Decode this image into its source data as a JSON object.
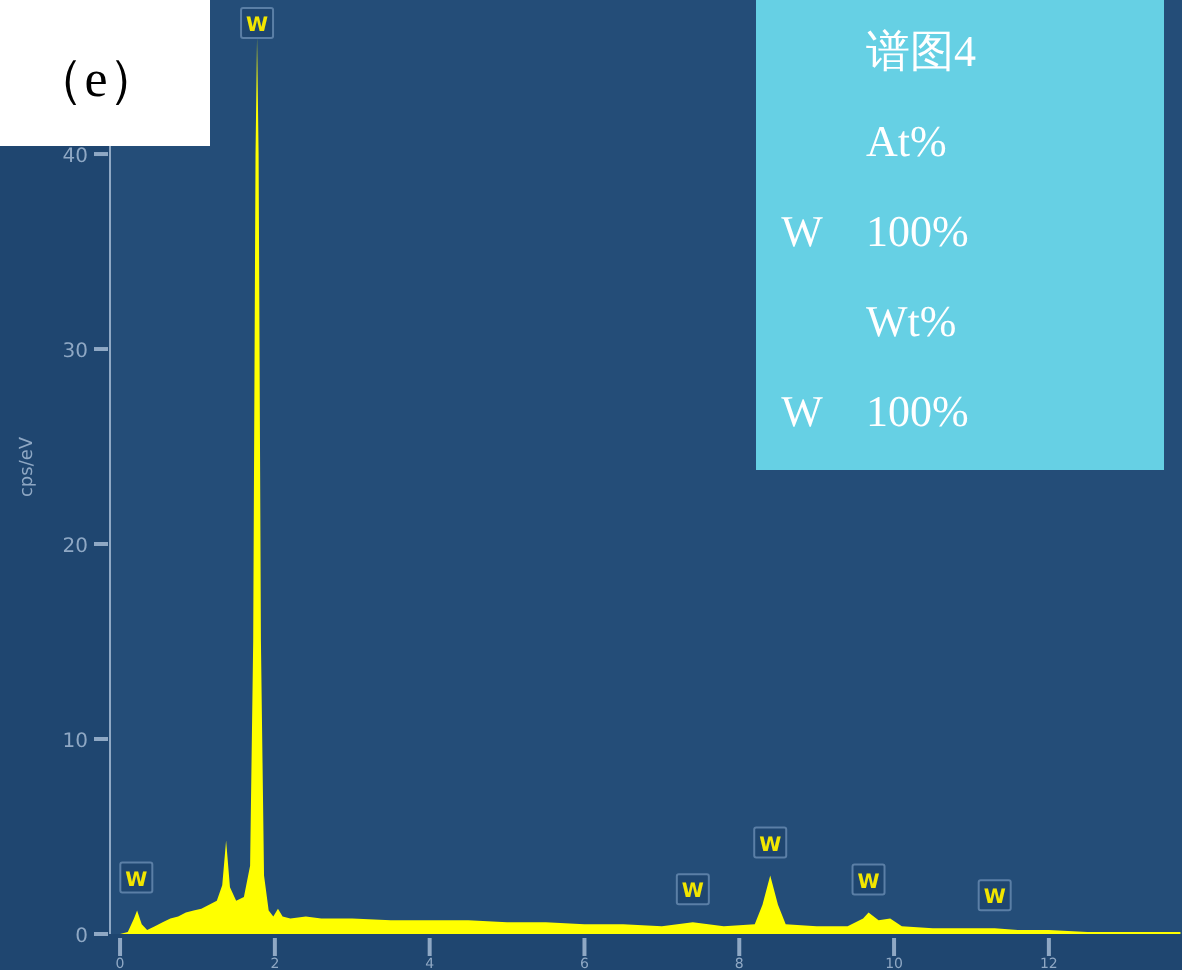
{
  "chart_data": {
    "type": "area",
    "title": "（e）",
    "ylabel": "cps/eV",
    "xlim": [
      -0.13,
      13.72
    ],
    "ylim": [
      0,
      47.9
    ],
    "xticks": [
      0,
      2,
      4,
      6,
      8,
      10,
      12
    ],
    "yticks": [
      0,
      10,
      20,
      30,
      40
    ],
    "grid": false,
    "series": [
      {
        "color": "#ffff00",
        "x": [
          0.0,
          0.1,
          0.18,
          0.22,
          0.28,
          0.35,
          0.45,
          0.55,
          0.65,
          0.75,
          0.85,
          0.95,
          1.05,
          1.15,
          1.25,
          1.32,
          1.37,
          1.42,
          1.5,
          1.6,
          1.68,
          1.72,
          1.75,
          1.77,
          1.79,
          1.82,
          1.86,
          1.92,
          1.98,
          2.04,
          2.1,
          2.2,
          2.4,
          2.6,
          2.8,
          3.0,
          3.5,
          4.0,
          4.5,
          5.0,
          5.5,
          6.0,
          6.5,
          7.0,
          7.4,
          7.8,
          8.2,
          8.3,
          8.4,
          8.5,
          8.6,
          9.0,
          9.4,
          9.6,
          9.67,
          9.8,
          9.95,
          10.1,
          10.5,
          11.0,
          11.3,
          11.6,
          12.0,
          12.5,
          13.0,
          13.7
        ],
        "values": [
          0,
          0.1,
          0.8,
          1.2,
          0.5,
          0.2,
          0.4,
          0.6,
          0.8,
          0.9,
          1.1,
          1.2,
          1.3,
          1.5,
          1.7,
          2.5,
          4.8,
          2.4,
          1.7,
          1.9,
          3.5,
          15,
          40,
          46,
          40,
          15,
          3,
          1.2,
          0.9,
          1.3,
          0.9,
          0.8,
          0.9,
          0.8,
          0.8,
          0.8,
          0.7,
          0.7,
          0.7,
          0.6,
          0.6,
          0.5,
          0.5,
          0.4,
          0.6,
          0.4,
          0.5,
          1.5,
          3.0,
          1.5,
          0.5,
          0.4,
          0.4,
          0.8,
          1.1,
          0.7,
          0.8,
          0.4,
          0.3,
          0.3,
          0.3,
          0.2,
          0.2,
          0.1,
          0.1,
          0.1
        ]
      }
    ],
    "annotations": [
      {
        "text": "W",
        "x": 0.21,
        "y": 1.2
      },
      {
        "text": "W",
        "x": 1.77,
        "y": 46
      },
      {
        "text": "W",
        "x": 7.4,
        "y": 0.6
      },
      {
        "text": "W",
        "x": 8.4,
        "y": 3.0
      },
      {
        "text": "W",
        "x": 9.67,
        "y": 1.1
      },
      {
        "text": "W",
        "x": 11.3,
        "y": 0.3
      },
      "谱图4",
      "At%",
      "W",
      "100%",
      "Wt%",
      "W",
      "100%"
    ]
  }
}
